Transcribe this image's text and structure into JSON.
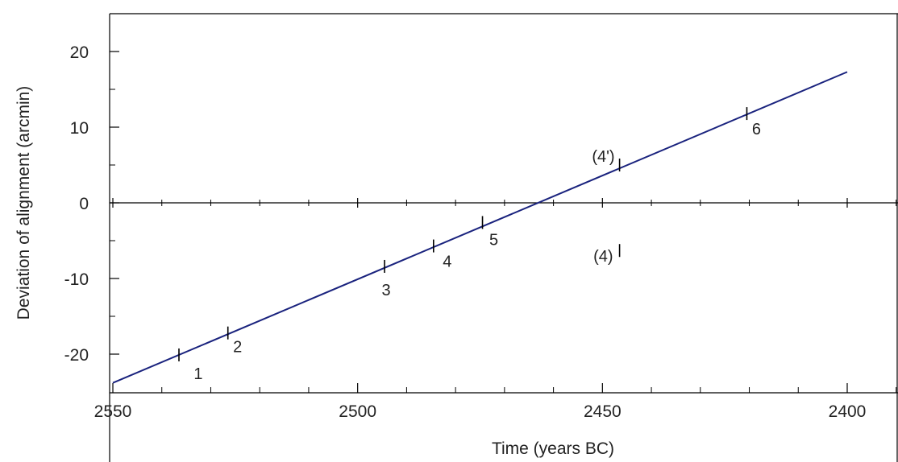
{
  "chart_data": {
    "type": "line",
    "xlabel": "Time (years BC)",
    "ylabel": "Deviation of alignment (arcmin)",
    "xlim": [
      2550,
      2390
    ],
    "x_reversed": true,
    "ylim": [
      -25,
      25
    ],
    "x_ticks": [
      2550,
      2500,
      2450,
      2400
    ],
    "x_tick_labels": [
      "2550",
      "2500",
      "2450",
      "2400"
    ],
    "y_ticks": [
      20,
      10,
      0,
      -10,
      -20
    ],
    "y_tick_labels": [
      "20",
      "10",
      "0",
      "-10",
      "-20"
    ],
    "x_minor_step": 10,
    "y_minor_step": 5,
    "zero_line": true,
    "line_color": "#1a237e",
    "series": [
      {
        "x": [
          2550,
          2400
        ],
        "y": [
          -23.8,
          17.3
        ]
      }
    ],
    "points": [
      {
        "label": "1",
        "x": 2536.5,
        "y": -20.1
      },
      {
        "label": "2",
        "x": 2526.5,
        "y": -17.2
      },
      {
        "label": "3",
        "x": 2494.5,
        "y": -8.4
      },
      {
        "label": "4",
        "x": 2484.5,
        "y": -5.7
      },
      {
        "label": "5",
        "x": 2474.5,
        "y": -2.6
      },
      {
        "label": "(4')",
        "x": 2446.5,
        "y": 5.0
      },
      {
        "label": "(4)",
        "x": 2446.5,
        "y": -6.3
      },
      {
        "label": "6",
        "x": 2420.5,
        "y": 11.8
      }
    ]
  }
}
